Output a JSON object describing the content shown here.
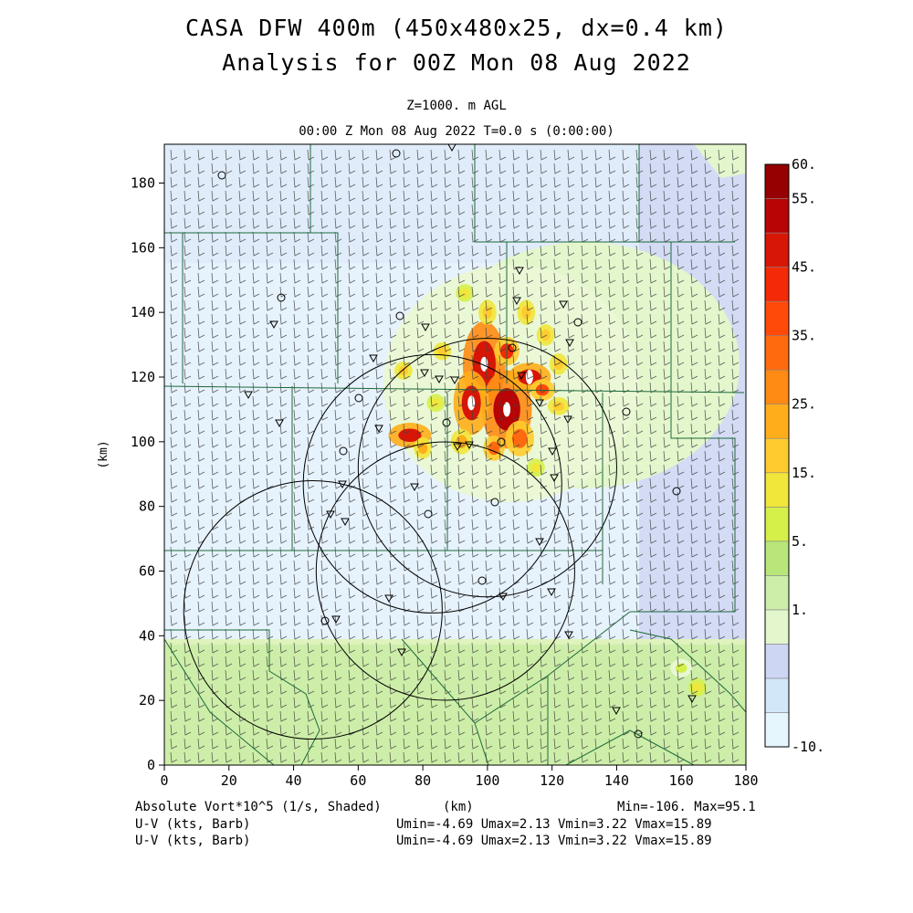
{
  "header": {
    "title_line1": "CASA DFW 400m (450x480x25, dx=0.4 km)",
    "title_line2": "Analysis for 00Z Mon 08 Aug 2022",
    "level": "Z=1000. m AGL",
    "time": "00:00 Z Mon 08 Aug 2022    T=0.0 s (0:00:00)"
  },
  "footer": {
    "field_label": "Absolute Vort*10^5 (1/s, Shaded)",
    "x_unit": "(km)",
    "minmax": "Min=-106. Max=95.1",
    "barb_label_1": "U-V (kts, Barb)",
    "barb_label_2": "U-V (kts, Barb)",
    "uv_stats_1": "Umin=-4.69 Umax=2.13 Vmin=3.22 Vmax=15.89",
    "uv_stats_2": "Umin=-4.69 Umax=2.13 Vmin=3.22 Vmax=15.89"
  },
  "chart_data": {
    "type": "heatmap",
    "title": "Absolute Vort*10^5 (1/s, Shaded)",
    "xlabel": "(km)",
    "ylabel": "(km)",
    "xlim": [
      0,
      180
    ],
    "ylim": [
      0,
      192
    ],
    "x_ticks": [
      0,
      20,
      40,
      60,
      80,
      100,
      120,
      140,
      160,
      180
    ],
    "y_ticks": [
      0,
      20,
      40,
      60,
      80,
      100,
      120,
      140,
      160,
      180
    ],
    "colorbar": {
      "tick_labels": [
        "60.",
        "55.",
        "45.",
        "35.",
        "25.",
        "15.",
        "5.",
        "1.",
        "-10."
      ],
      "colors": [
        "#e6f6fd",
        "#d2e8f8",
        "#cdd6f3",
        "#e3f6cc",
        "#cdeea8",
        "#b8e67a",
        "#d6f04a",
        "#f1e63a",
        "#ffcb2e",
        "#ffad1a",
        "#ff8a14",
        "#ff6a0e",
        "#ff4a0a",
        "#f22a08",
        "#d81606",
        "#b80404",
        "#960000"
      ]
    },
    "barb_field": {
      "u_range": [
        -4.69,
        2.13
      ],
      "v_range": [
        3.22,
        15.89
      ],
      "units": "kts"
    },
    "radar_rings": [
      {
        "center_km": [
          100,
          92
        ],
        "radius_km": 40
      },
      {
        "center_km": [
          83,
          87
        ],
        "radius_km": 40
      },
      {
        "center_km": [
          87,
          60
        ],
        "radius_km": 40
      },
      {
        "center_km": [
          46,
          48
        ],
        "radius_km": 40
      }
    ],
    "vorticity_maxima": [
      {
        "x_km": 99,
        "y_km": 124,
        "level": "high"
      },
      {
        "x_km": 106,
        "y_km": 110,
        "level": "high"
      },
      {
        "x_km": 95,
        "y_km": 112,
        "level": "high"
      },
      {
        "x_km": 113,
        "y_km": 120,
        "level": "moderate"
      },
      {
        "x_km": 76,
        "y_km": 102,
        "level": "moderate"
      }
    ]
  }
}
